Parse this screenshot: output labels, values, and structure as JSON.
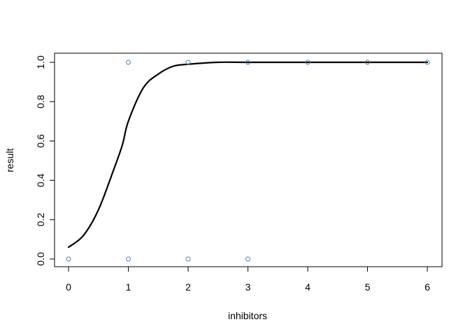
{
  "chart_data": {
    "type": "scatter",
    "title": "",
    "xlabel": "inhibitors",
    "ylabel": "result",
    "xlim": [
      0,
      6
    ],
    "ylim": [
      0,
      1
    ],
    "xticks": [
      "0",
      "1",
      "2",
      "3",
      "4",
      "5",
      "6"
    ],
    "yticks": [
      "0.0",
      "0.2",
      "0.4",
      "0.6",
      "0.8",
      "1.0"
    ],
    "grid": false,
    "legend": "none",
    "points": [
      {
        "x": 0,
        "y": 0
      },
      {
        "x": 1,
        "y": 1
      },
      {
        "x": 1,
        "y": 0
      },
      {
        "x": 2,
        "y": 1
      },
      {
        "x": 2,
        "y": 0
      },
      {
        "x": 3,
        "y": 1
      },
      {
        "x": 3,
        "y": 0
      },
      {
        "x": 4,
        "y": 1
      },
      {
        "x": 5,
        "y": 1
      },
      {
        "x": 6,
        "y": 1
      }
    ],
    "fitted_curve": {
      "type": "logistic",
      "x": [
        0,
        0.25,
        0.5,
        0.75,
        0.9,
        1.0,
        1.25,
        1.5,
        1.75,
        2.0,
        2.5,
        3.0,
        4.0,
        5.0,
        6.0
      ],
      "y": [
        0.06,
        0.12,
        0.25,
        0.45,
        0.58,
        0.7,
        0.87,
        0.94,
        0.98,
        0.99,
        1.0,
        1.0,
        1.0,
        1.0,
        1.0
      ]
    },
    "colors": {
      "points": "#4a86c0",
      "curve": "#000000",
      "axes": "#000000"
    }
  }
}
